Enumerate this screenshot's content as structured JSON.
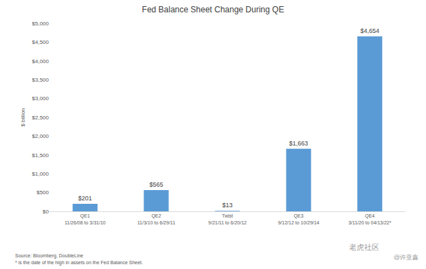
{
  "chart_data": {
    "type": "bar",
    "title": "Fed Balance Sheet Change During QE",
    "y_label": "$ billion",
    "categories": [
      "QE1\n11/26/08 to 3/31/10",
      "QE2\n11/3/10 to 6/29/11",
      "Twist\n9/21/11 to 6/20/12",
      "QE3\n9/12/12 to 10/29/14",
      "QE4\n3/11/20 to 04/13/22*"
    ],
    "values": [
      201,
      565,
      13,
      1663,
      4654
    ],
    "value_labels": [
      "$201",
      "$565",
      "$13",
      "$1,663",
      "$4,654"
    ],
    "data_labels": true,
    "color": "#5b9bd5",
    "ylim": [
      0,
      5000
    ],
    "yticks": [
      {
        "value": 0,
        "label": "$0"
      },
      {
        "value": 500,
        "label": "$500"
      },
      {
        "value": 1000,
        "label": "$1,000"
      },
      {
        "value": 1500,
        "label": "$1,500"
      },
      {
        "value": 2000,
        "label": "$2,000"
      },
      {
        "value": 2500,
        "label": "$2,500"
      },
      {
        "value": 3000,
        "label": "$3,000"
      },
      {
        "value": 3500,
        "label": "$3,500"
      },
      {
        "value": 4000,
        "label": "$4,000"
      },
      {
        "value": 4500,
        "label": "$4,500"
      },
      {
        "value": 5000,
        "label": "$5,000"
      }
    ],
    "grid": false,
    "annotations": [
      "Source: Bloomberg, DoubleLine",
      "* is the date of the high in assets on the Fed Balance Sheet.",
      "老虎社区",
      "@许亚鑫"
    ]
  }
}
